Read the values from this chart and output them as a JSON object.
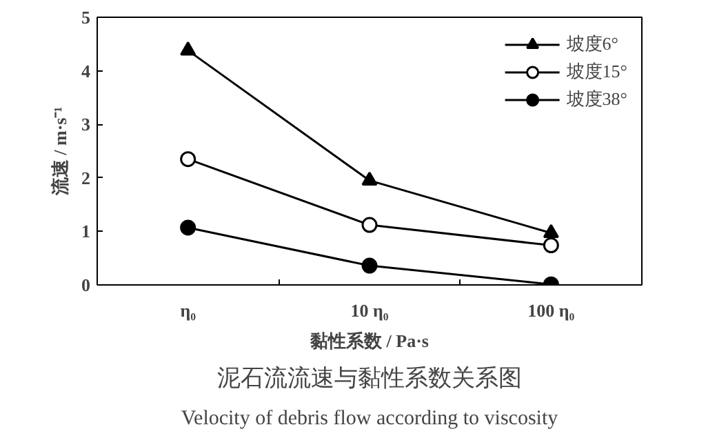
{
  "chart_data": {
    "type": "line",
    "title": "泥石流流速与黏性系数关系图",
    "subtitle": "Velocity of debris flow according to viscosity",
    "xlabel": "黏性系数 / Pa·s",
    "ylabel": "流速 / m·s⁻¹",
    "categories": [
      "η₀",
      "10 η₀",
      "100 η₀"
    ],
    "series": [
      {
        "name": "坡度6°",
        "color": "#000000",
        "marker": "triangle",
        "values": [
          4.38,
          1.95,
          0.97
        ]
      },
      {
        "name": "坡度15°",
        "color": "#000000",
        "marker": "circle_open",
        "values": [
          2.35,
          1.12,
          0.74
        ]
      },
      {
        "name": "坡度38°",
        "color": "#000000",
        "marker": "circle",
        "values": [
          1.07,
          0.36,
          0.01
        ]
      }
    ],
    "ylim": [
      0,
      5
    ],
    "yticks": [
      0,
      1,
      2,
      3,
      4,
      5
    ],
    "grid": false,
    "legend": "top right",
    "line_style": "solid"
  }
}
